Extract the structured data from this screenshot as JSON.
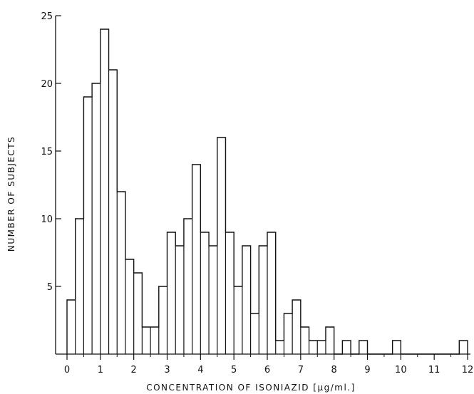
{
  "chart_data": {
    "type": "bar",
    "xlabel": "CONCENTRATION OF ISONIAZID [µg/ml.]",
    "ylabel": "NUMBER OF SUBJECTS",
    "xlim": [
      0,
      12
    ],
    "ylim": [
      0,
      25
    ],
    "xticks": [
      "0",
      "1",
      "2",
      "3",
      "4",
      "5",
      "6",
      "7",
      "8",
      "9",
      "10",
      "11",
      "12"
    ],
    "yticks": [
      "5",
      "10",
      "15",
      "20",
      "25"
    ],
    "bin_width": 0.25,
    "bin_start": 0,
    "values": [
      4,
      10,
      19,
      20,
      24,
      21,
      12,
      7,
      6,
      2,
      2,
      5,
      9,
      8,
      10,
      14,
      9,
      8,
      16,
      9,
      5,
      8,
      3,
      8,
      9,
      1,
      3,
      4,
      2,
      1,
      1,
      2,
      0,
      1,
      0,
      1,
      0,
      0,
      0,
      1,
      0,
      0,
      0,
      0,
      0,
      0,
      0,
      1
    ],
    "grid": false,
    "legend": "none"
  }
}
